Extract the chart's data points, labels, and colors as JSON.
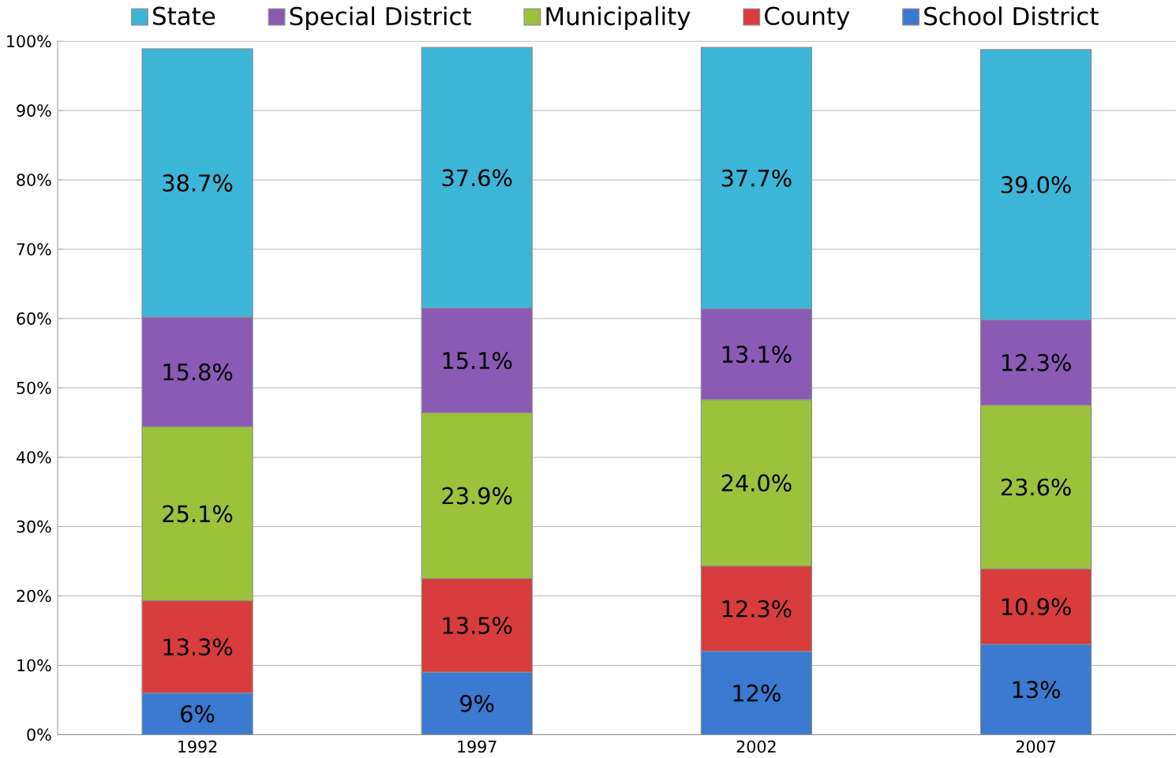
{
  "chart_data": {
    "type": "bar",
    "stacked": true,
    "categories": [
      "1992",
      "1997",
      "2002",
      "2007"
    ],
    "series": [
      {
        "name": "School District",
        "color": "#3a7ad0",
        "values": [
          6,
          9,
          12,
          13
        ],
        "value_labels": [
          "6%",
          "9%",
          "12%",
          "13%"
        ]
      },
      {
        "name": "County",
        "color": "#d83c3c",
        "values": [
          13.3,
          13.5,
          12.3,
          10.9
        ],
        "value_labels": [
          "13.3%",
          "13.5%",
          "12.3%",
          "10.9%"
        ]
      },
      {
        "name": "Municipality",
        "color": "#9cc23c",
        "values": [
          25.1,
          23.9,
          24.0,
          23.6
        ],
        "value_labels": [
          "25.1%",
          "23.9%",
          "24.0%",
          "23.6%"
        ]
      },
      {
        "name": "Special District",
        "color": "#8a5ab4",
        "values": [
          15.8,
          15.1,
          13.1,
          12.3
        ],
        "value_labels": [
          "15.8%",
          "15.1%",
          "13.1%",
          "12.3%"
        ]
      },
      {
        "name": "State",
        "color": "#3cb6d8",
        "values": [
          38.7,
          37.6,
          37.7,
          39.0
        ],
        "value_labels": [
          "38.7%",
          "37.6%",
          "37.7%",
          "39.0%"
        ]
      }
    ],
    "ylim": [
      0,
      100
    ],
    "yticks": [
      {
        "value": 0,
        "label": "0%"
      },
      {
        "value": 10,
        "label": "10%"
      },
      {
        "value": 20,
        "label": "20%"
      },
      {
        "value": 30,
        "label": "30%"
      },
      {
        "value": 40,
        "label": "40%"
      },
      {
        "value": 50,
        "label": "50%"
      },
      {
        "value": 60,
        "label": "60%"
      },
      {
        "value": 70,
        "label": "70%"
      },
      {
        "value": 80,
        "label": "80%"
      },
      {
        "value": 90,
        "label": "90%"
      },
      {
        "value": 100,
        "label": "100%"
      }
    ],
    "grid": "y",
    "legend": "top"
  }
}
